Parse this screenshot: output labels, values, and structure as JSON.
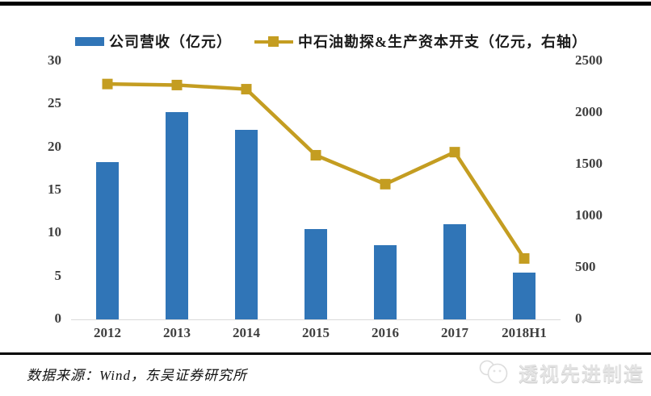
{
  "page": {
    "source_note": "数据来源：Wind，东吴证券研究所",
    "watermark": "透视先进制造"
  },
  "chart_data": {
    "type": "bar",
    "categories": [
      "2012",
      "2013",
      "2014",
      "2015",
      "2016",
      "2017",
      "2018H1"
    ],
    "series": [
      {
        "name": "公司营收（亿元）",
        "type": "bar",
        "axis": "left",
        "color": "#3075B7",
        "values": [
          18.3,
          24.1,
          22.0,
          10.5,
          8.6,
          11.1,
          5.4
        ]
      },
      {
        "name": "中石油勘探&生产资本开支（亿元，右轴）",
        "type": "line",
        "axis": "right",
        "color": "#C49D21",
        "values": [
          2280,
          2270,
          2230,
          1590,
          1310,
          1620,
          590
        ]
      }
    ],
    "left_axis": {
      "min": 0,
      "max": 30,
      "step": 5,
      "ticks": [
        "30",
        "25",
        "20",
        "15",
        "10",
        "5",
        "0"
      ]
    },
    "right_axis": {
      "min": 0,
      "max": 2500,
      "step": 500,
      "ticks": [
        "2500",
        "2000",
        "1500",
        "1000",
        "500",
        "0"
      ]
    },
    "legend_position": "top",
    "grid": false,
    "title": ""
  },
  "colors": {
    "bar": "#3075B7",
    "line": "#C49D21",
    "tick_text": "#3f3f3f",
    "axis_line": "#d9d9d9",
    "divider": "#000000",
    "watermark": "#e3e3e3"
  }
}
